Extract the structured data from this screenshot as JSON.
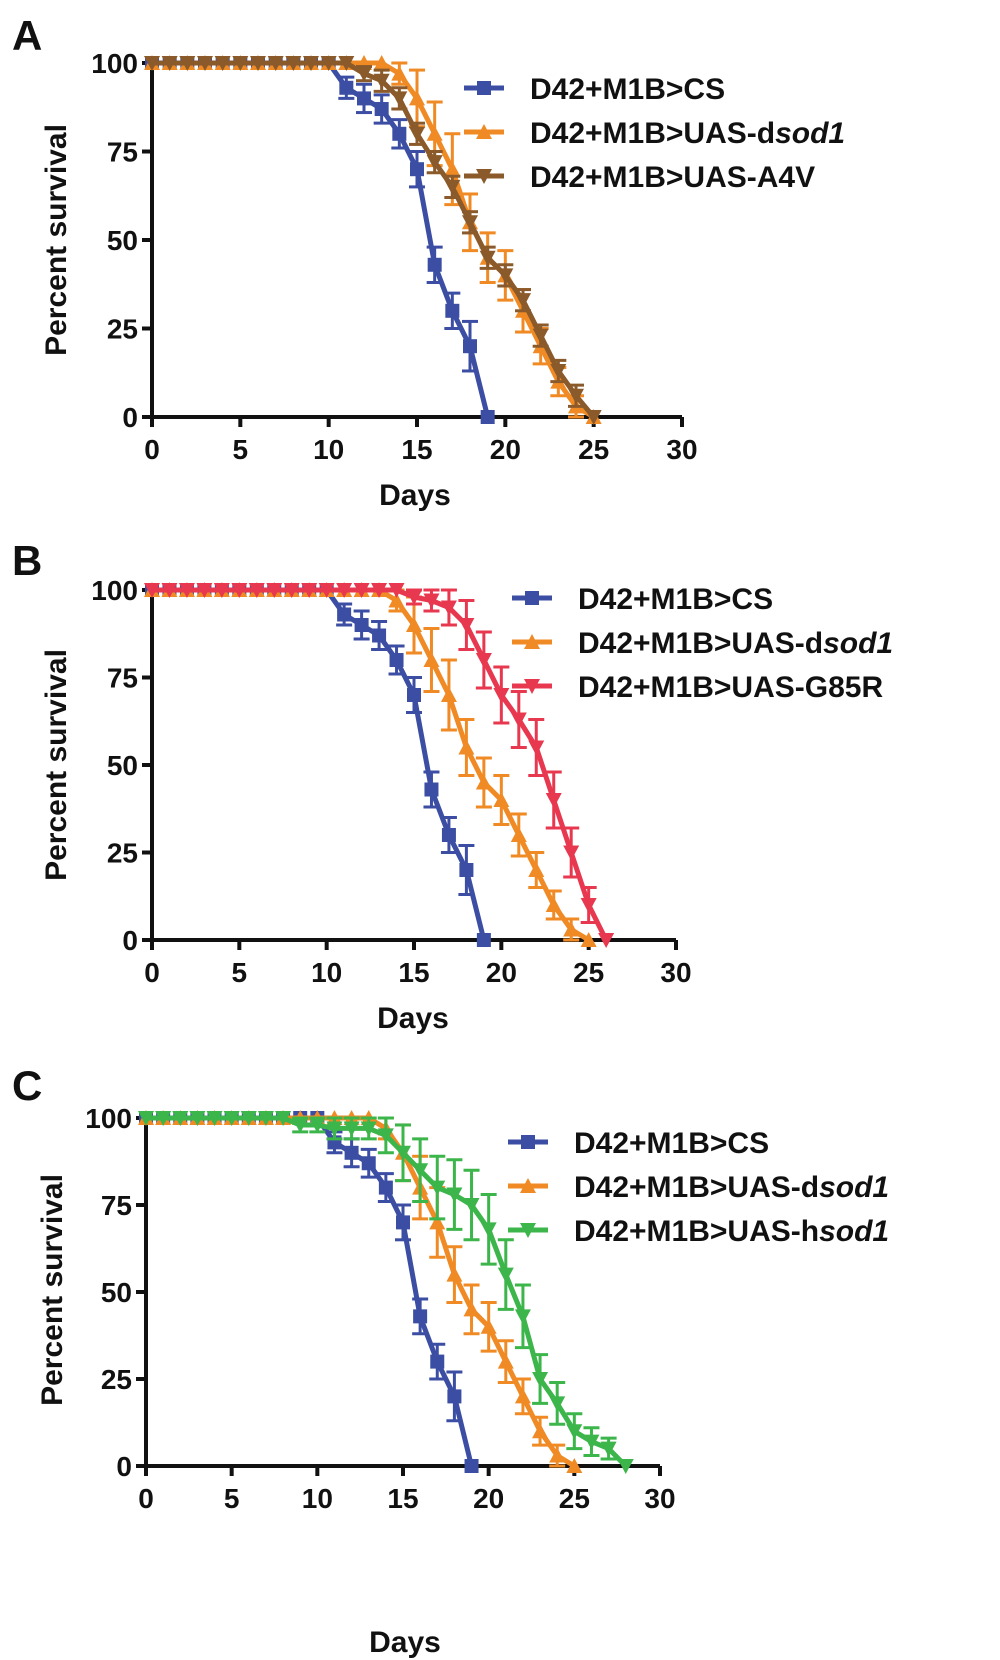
{
  "chart_data": [
    {
      "type": "line",
      "panel": "A",
      "xlabel": "Days",
      "ylabel": "Percent survival",
      "xlim": [
        0,
        30
      ],
      "ylim": [
        0,
        100
      ],
      "xticks": [
        0,
        5,
        10,
        15,
        20,
        25,
        30
      ],
      "yticks": [
        0,
        25,
        50,
        75,
        100
      ],
      "grid": false,
      "legend_position": "top-right",
      "series": [
        {
          "name": "D42+M1B>CS",
          "name_parts": [
            {
              "text": "D42+M1B>CS",
              "italic": false
            }
          ],
          "color": "#3b4ea3",
          "marker": "square",
          "x": [
            0,
            1,
            2,
            3,
            4,
            5,
            6,
            7,
            8,
            9,
            10,
            11,
            12,
            13,
            14,
            15,
            16,
            17,
            18,
            19
          ],
          "y": [
            100,
            100,
            100,
            100,
            100,
            100,
            100,
            100,
            100,
            100,
            100,
            93,
            90,
            87,
            80,
            70,
            43,
            30,
            20,
            0
          ],
          "err": [
            0,
            0,
            0,
            0,
            0,
            0,
            0,
            0,
            0,
            0,
            0,
            3,
            4,
            4,
            4,
            5,
            5,
            5,
            7,
            0
          ]
        },
        {
          "name": "D42+M1B>UAS-dsod1",
          "name_parts": [
            {
              "text": "D42+M1B>UAS-d",
              "italic": false
            },
            {
              "text": "sod1",
              "italic": true
            }
          ],
          "color": "#f08a24",
          "marker": "triangle-up",
          "x": [
            0,
            1,
            2,
            3,
            4,
            5,
            6,
            7,
            8,
            9,
            10,
            11,
            12,
            13,
            14,
            15,
            16,
            17,
            18,
            19,
            20,
            21,
            22,
            23,
            24,
            25
          ],
          "y": [
            100,
            100,
            100,
            100,
            100,
            100,
            100,
            100,
            100,
            100,
            100,
            100,
            100,
            100,
            97,
            90,
            80,
            70,
            55,
            45,
            40,
            30,
            20,
            10,
            3,
            0
          ],
          "err": [
            0,
            0,
            0,
            0,
            0,
            0,
            0,
            0,
            0,
            0,
            0,
            0,
            0,
            0,
            3,
            8,
            9,
            10,
            8,
            7,
            7,
            6,
            5,
            4,
            3,
            0
          ]
        },
        {
          "name": "D42+M1B>UAS-A4V",
          "name_parts": [
            {
              "text": "D42+M1B>UAS-A4V",
              "italic": false
            }
          ],
          "color": "#8b5a2b",
          "marker": "triangle-down",
          "x": [
            0,
            1,
            2,
            3,
            4,
            5,
            6,
            7,
            8,
            9,
            10,
            11,
            12,
            13,
            14,
            15,
            16,
            17,
            18,
            19,
            20,
            21,
            22,
            23,
            24,
            25
          ],
          "y": [
            100,
            100,
            100,
            100,
            100,
            100,
            100,
            100,
            100,
            100,
            100,
            100,
            97,
            95,
            90,
            80,
            72,
            65,
            55,
            45,
            40,
            33,
            23,
            13,
            6,
            0
          ],
          "err": [
            0,
            0,
            0,
            0,
            0,
            0,
            0,
            0,
            0,
            0,
            0,
            0,
            2,
            3,
            3,
            3,
            3,
            3,
            3,
            3,
            3,
            3,
            3,
            3,
            3,
            0
          ]
        }
      ]
    },
    {
      "type": "line",
      "panel": "B",
      "xlabel": "Days",
      "ylabel": "Percent survival",
      "xlim": [
        0,
        30
      ],
      "ylim": [
        0,
        100
      ],
      "xticks": [
        0,
        5,
        10,
        15,
        20,
        25,
        30
      ],
      "yticks": [
        0,
        25,
        50,
        75,
        100
      ],
      "grid": false,
      "legend_position": "top-right",
      "series": [
        {
          "name": "D42+M1B>CS",
          "name_parts": [
            {
              "text": "D42+M1B>CS",
              "italic": false
            }
          ],
          "color": "#3b4ea3",
          "marker": "square",
          "x": [
            0,
            1,
            2,
            3,
            4,
            5,
            6,
            7,
            8,
            9,
            10,
            11,
            12,
            13,
            14,
            15,
            16,
            17,
            18,
            19
          ],
          "y": [
            100,
            100,
            100,
            100,
            100,
            100,
            100,
            100,
            100,
            100,
            100,
            93,
            90,
            87,
            80,
            70,
            43,
            30,
            20,
            0
          ],
          "err": [
            0,
            0,
            0,
            0,
            0,
            0,
            0,
            0,
            0,
            0,
            0,
            3,
            4,
            4,
            4,
            5,
            5,
            5,
            7,
            0
          ]
        },
        {
          "name": "D42+M1B>UAS-dsod1",
          "name_parts": [
            {
              "text": "D42+M1B>UAS-d",
              "italic": false
            },
            {
              "text": "sod1",
              "italic": true
            }
          ],
          "color": "#f08a24",
          "marker": "triangle-up",
          "x": [
            0,
            1,
            2,
            3,
            4,
            5,
            6,
            7,
            8,
            9,
            10,
            11,
            12,
            13,
            14,
            15,
            16,
            17,
            18,
            19,
            20,
            21,
            22,
            23,
            24,
            25
          ],
          "y": [
            100,
            100,
            100,
            100,
            100,
            100,
            100,
            100,
            100,
            100,
            100,
            100,
            100,
            100,
            97,
            90,
            80,
            70,
            55,
            45,
            40,
            30,
            20,
            10,
            3,
            0
          ],
          "err": [
            0,
            0,
            0,
            0,
            0,
            0,
            0,
            0,
            0,
            0,
            0,
            0,
            0,
            0,
            3,
            8,
            9,
            10,
            8,
            7,
            7,
            6,
            5,
            4,
            3,
            0
          ]
        },
        {
          "name": "D42+M1B>UAS-G85R",
          "name_parts": [
            {
              "text": "D42+M1B>UAS-G85R",
              "italic": false
            }
          ],
          "color": "#e8384f",
          "marker": "triangle-down",
          "x": [
            0,
            1,
            2,
            3,
            4,
            5,
            6,
            7,
            8,
            9,
            10,
            11,
            12,
            13,
            14,
            15,
            16,
            17,
            18,
            19,
            20,
            21,
            22,
            23,
            24,
            25,
            26
          ],
          "y": [
            100,
            100,
            100,
            100,
            100,
            100,
            100,
            100,
            100,
            100,
            100,
            100,
            100,
            100,
            100,
            98,
            97,
            95,
            90,
            80,
            70,
            63,
            55,
            40,
            25,
            10,
            0
          ],
          "err": [
            0,
            0,
            0,
            0,
            0,
            0,
            0,
            0,
            0,
            0,
            0,
            0,
            0,
            0,
            0,
            2,
            3,
            5,
            7,
            8,
            8,
            8,
            8,
            8,
            7,
            5,
            0
          ]
        }
      ]
    },
    {
      "type": "line",
      "panel": "C",
      "xlabel": "Days",
      "ylabel": "Percent survival",
      "xlim": [
        0,
        30
      ],
      "ylim": [
        0,
        100
      ],
      "xticks": [
        0,
        5,
        10,
        15,
        20,
        25,
        30
      ],
      "yticks": [
        0,
        25,
        50,
        75,
        100
      ],
      "grid": false,
      "legend_position": "top-right",
      "series": [
        {
          "name": "D42+M1B>CS",
          "name_parts": [
            {
              "text": "D42+M1B>CS",
              "italic": false
            }
          ],
          "color": "#3b4ea3",
          "marker": "square",
          "x": [
            0,
            1,
            2,
            3,
            4,
            5,
            6,
            7,
            8,
            9,
            10,
            11,
            12,
            13,
            14,
            15,
            16,
            17,
            18,
            19
          ],
          "y": [
            100,
            100,
            100,
            100,
            100,
            100,
            100,
            100,
            100,
            100,
            100,
            93,
            90,
            87,
            80,
            70,
            43,
            30,
            20,
            0
          ],
          "err": [
            0,
            0,
            0,
            0,
            0,
            0,
            0,
            0,
            0,
            0,
            0,
            3,
            4,
            4,
            4,
            5,
            5,
            5,
            7,
            0
          ]
        },
        {
          "name": "D42+M1B>UAS-dsod1",
          "name_parts": [
            {
              "text": "D42+M1B>UAS-d",
              "italic": false
            },
            {
              "text": "sod1",
              "italic": true
            }
          ],
          "color": "#f08a24",
          "marker": "triangle-up",
          "x": [
            0,
            1,
            2,
            3,
            4,
            5,
            6,
            7,
            8,
            9,
            10,
            11,
            12,
            13,
            14,
            15,
            16,
            17,
            18,
            19,
            20,
            21,
            22,
            23,
            24,
            25
          ],
          "y": [
            100,
            100,
            100,
            100,
            100,
            100,
            100,
            100,
            100,
            100,
            100,
            100,
            100,
            100,
            97,
            90,
            80,
            70,
            55,
            45,
            40,
            30,
            20,
            10,
            3,
            0
          ],
          "err": [
            0,
            0,
            0,
            0,
            0,
            0,
            0,
            0,
            0,
            0,
            0,
            0,
            0,
            0,
            3,
            8,
            9,
            10,
            8,
            7,
            7,
            6,
            5,
            4,
            3,
            0
          ]
        },
        {
          "name": "D42+M1B>UAS-hsod1",
          "name_parts": [
            {
              "text": "D42+M1B>UAS-h",
              "italic": false
            },
            {
              "text": "sod1",
              "italic": true
            }
          ],
          "color": "#3cb54a",
          "marker": "triangle-down",
          "x": [
            0,
            1,
            2,
            3,
            4,
            5,
            6,
            7,
            8,
            9,
            10,
            11,
            12,
            13,
            14,
            15,
            16,
            17,
            18,
            19,
            20,
            21,
            22,
            23,
            24,
            25,
            26,
            27,
            28
          ],
          "y": [
            100,
            100,
            100,
            100,
            100,
            100,
            100,
            100,
            100,
            98,
            98,
            97,
            97,
            97,
            95,
            90,
            85,
            80,
            78,
            75,
            68,
            55,
            43,
            25,
            18,
            10,
            7,
            5,
            0
          ],
          "err": [
            0,
            0,
            0,
            0,
            0,
            0,
            0,
            0,
            0,
            2,
            2,
            3,
            3,
            3,
            5,
            8,
            9,
            9,
            10,
            10,
            10,
            10,
            9,
            7,
            6,
            5,
            4,
            3,
            0
          ]
        }
      ]
    }
  ]
}
